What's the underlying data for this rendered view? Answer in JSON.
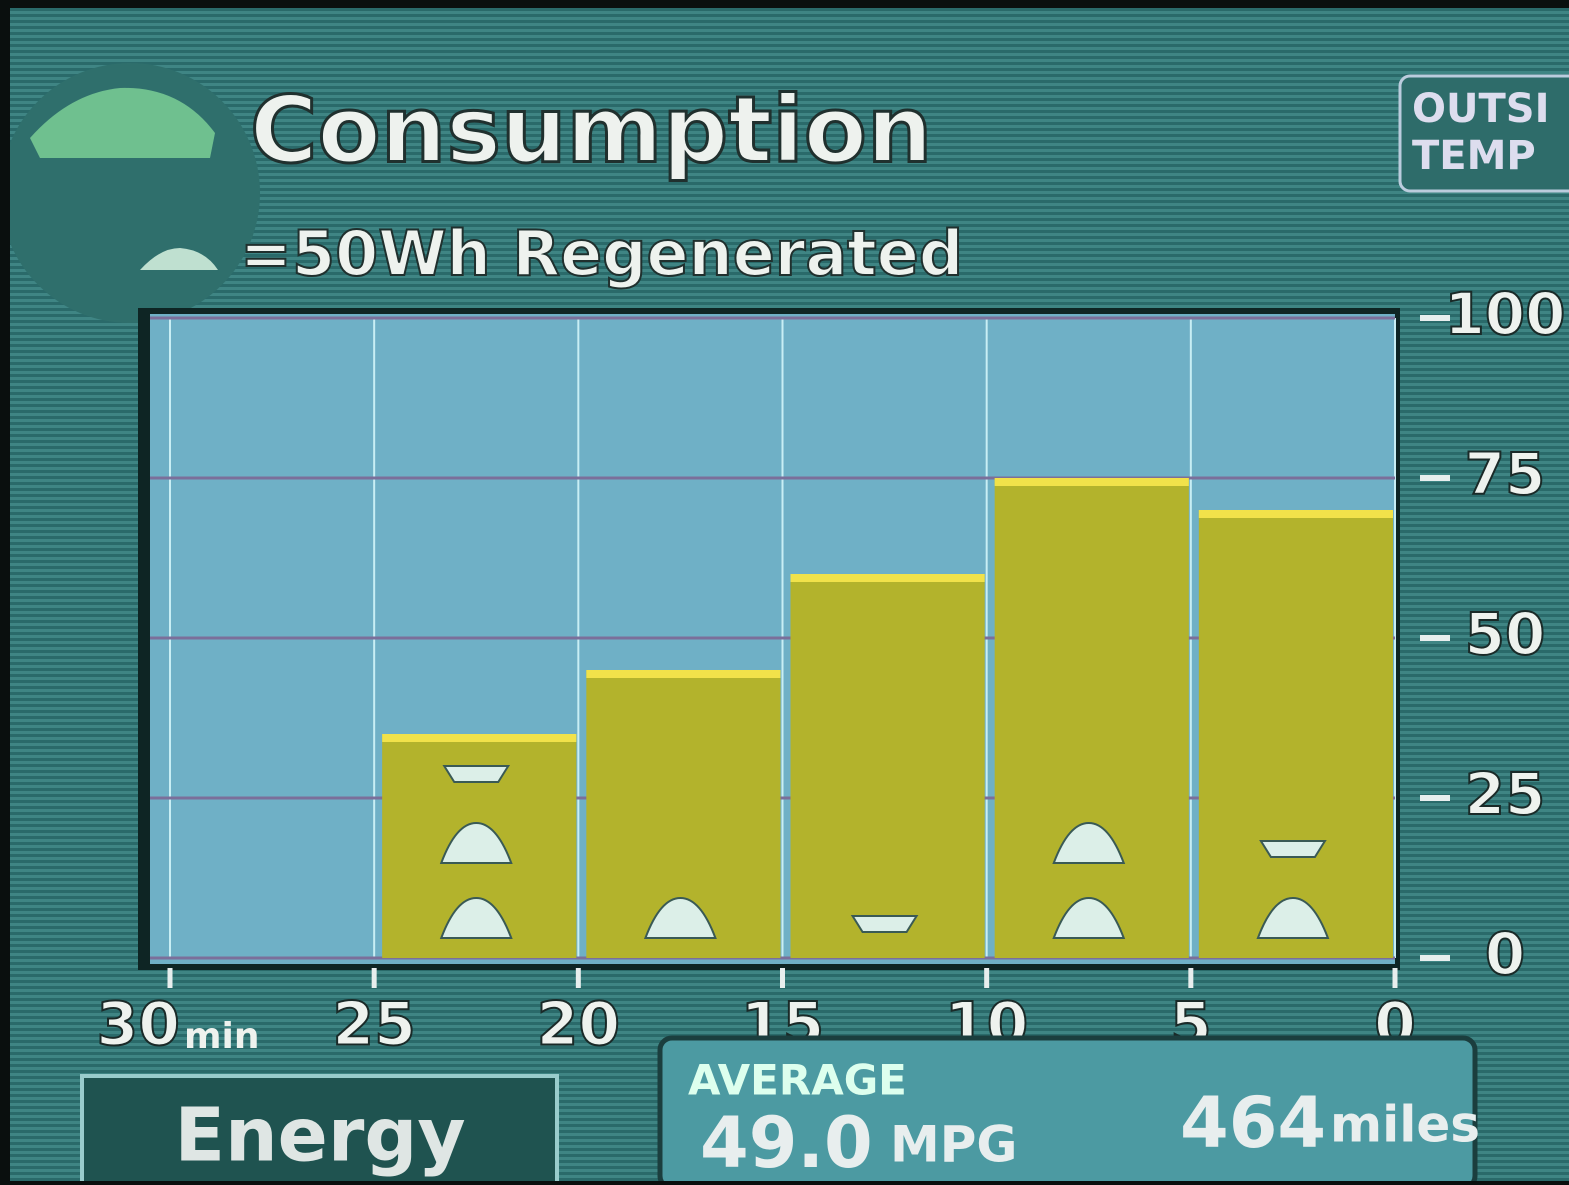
{
  "header": {
    "title": "Consumption",
    "legend": "=50Wh Regenerated"
  },
  "outside_temp": [
    "OUTSI",
    "TEMP"
  ],
  "chart_data": {
    "type": "histogram",
    "bins": [
      30,
      25,
      20,
      15,
      10,
      5,
      0
    ],
    "values": [
      null,
      35,
      45,
      60,
      75,
      70
    ],
    "regenerated_icons": [
      null,
      2.5,
      1,
      0.5,
      2,
      1.5
    ],
    "x_unit": "min",
    "xlim": [
      30,
      0
    ],
    "xticks": [
      30,
      25,
      20,
      15,
      10,
      5,
      0
    ],
    "ylim": [
      0,
      100
    ],
    "yticks": [
      0,
      25,
      50,
      75,
      100
    ],
    "color": "#b3b32c",
    "top_color": "#f1e24a",
    "grid": true
  },
  "button": "Energy",
  "average": {
    "label": "AVERAGE",
    "mpg": "49.0",
    "mpg_unit": "MPG",
    "range": "464",
    "range_unit": "miles"
  }
}
